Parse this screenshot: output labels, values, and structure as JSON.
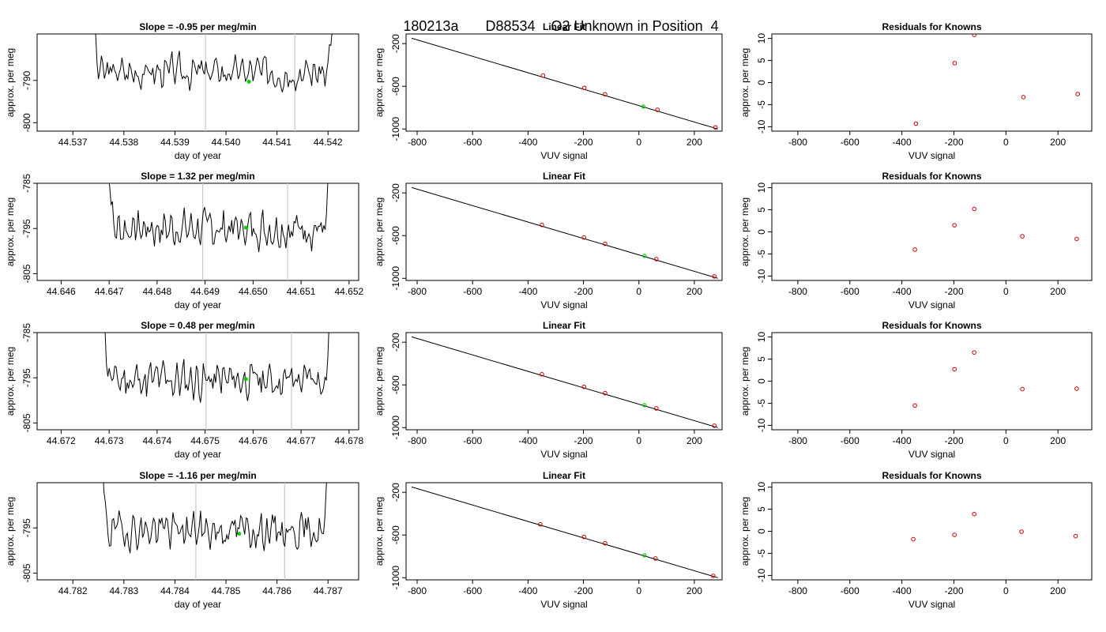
{
  "title": {
    "date": "180213a",
    "tank": "D88534",
    "label": "O2 Unknown in Position  4"
  },
  "chart_data": [
    {
      "type": "line",
      "row": 1,
      "panel": "timeseries",
      "title": "Slope =  -0.95  per meg/min",
      "xlabel": "day of year",
      "ylabel": "approx. per meg",
      "xlim": [
        44.5363,
        44.5426
      ],
      "ylim": [
        -802,
        -779
      ],
      "xticks": [
        "44.537",
        "44.538",
        "44.539",
        "44.540",
        "44.541",
        "44.542"
      ],
      "xtick_values": [
        44.537,
        44.538,
        44.539,
        44.54,
        44.541,
        44.542
      ],
      "yticks": [
        "-800",
        "-790"
      ],
      "ytick_values": [
        -800,
        -790
      ],
      "vlines": [
        44.5396,
        44.54135
      ],
      "green_point": [
        44.54045,
        -790.3
      ],
      "x_start": 44.5373,
      "x_end": 44.5422,
      "baseline": -788,
      "amplitude": 2.6,
      "seed": 3
    },
    {
      "type": "line",
      "row": 2,
      "panel": "timeseries",
      "title": "Slope =  1.32  per meg/min",
      "xlabel": "day of year",
      "ylabel": "approx. per meg",
      "xlim": [
        44.6455,
        44.6522
      ],
      "ylim": [
        -806.5,
        -785
      ],
      "xticks": [
        "44.646",
        "44.647",
        "44.648",
        "44.649",
        "44.650",
        "44.651",
        "44.652"
      ],
      "xtick_values": [
        44.646,
        44.647,
        44.648,
        44.649,
        44.65,
        44.651,
        44.652
      ],
      "yticks": [
        "-785",
        "-795",
        "-805"
      ],
      "ytick_values": [
        -785,
        -795,
        -805
      ],
      "vlines": [
        44.64895,
        44.65072
      ],
      "green_point": [
        44.64985,
        -794.8
      ],
      "x_start": 44.6469,
      "x_end": 44.6517,
      "baseline": -795,
      "amplitude": 2.8,
      "seed": 7
    },
    {
      "type": "line",
      "row": 3,
      "panel": "timeseries",
      "title": "Slope =  0.48  per meg/min",
      "xlabel": "day of year",
      "ylabel": "approx. per meg",
      "xlim": [
        44.6715,
        44.6782
      ],
      "ylim": [
        -806.5,
        -785
      ],
      "xticks": [
        "44.672",
        "44.673",
        "44.674",
        "44.675",
        "44.676",
        "44.677",
        "44.678"
      ],
      "xtick_values": [
        44.672,
        44.673,
        44.674,
        44.675,
        44.676,
        44.677,
        44.678
      ],
      "yticks": [
        "-785",
        "-795",
        "-805"
      ],
      "ytick_values": [
        -785,
        -795,
        -805
      ],
      "vlines": [
        44.67502,
        44.6768
      ],
      "green_point": [
        44.67585,
        -795.3
      ],
      "x_start": 44.6728,
      "x_end": 44.6777,
      "baseline": -795.5,
      "amplitude": 2.9,
      "seed": 11
    },
    {
      "type": "line",
      "row": 4,
      "panel": "timeseries",
      "title": "Slope =  -1.16  per meg/min",
      "xlabel": "day of year",
      "ylabel": "approx. per meg",
      "xlim": [
        44.7813,
        44.7876
      ],
      "ylim": [
        -806.5,
        -785
      ],
      "xticks": [
        "44.782",
        "44.783",
        "44.784",
        "44.785",
        "44.786",
        "44.787"
      ],
      "xtick_values": [
        44.782,
        44.783,
        44.784,
        44.785,
        44.786,
        44.787
      ],
      "yticks": [
        "-795",
        "-805"
      ],
      "ytick_values": [
        -795,
        -805
      ],
      "vlines": [
        44.78441,
        44.78615
      ],
      "green_point": [
        44.78526,
        -796.3
      ],
      "x_start": 44.7825,
      "x_end": 44.7871,
      "baseline": -795.5,
      "amplitude": 2.7,
      "seed": 19
    },
    {
      "type": "scatter",
      "row": 1,
      "panel": "fit",
      "title": "Linear Fit",
      "xlabel": "VUV signal",
      "ylabel": "approx. per meg",
      "xlim": [
        -840,
        300
      ],
      "ylim": [
        -1020,
        -110
      ],
      "xticks": [
        "-800",
        "-600",
        "-400",
        "-200",
        "0",
        "200"
      ],
      "xtick_values": [
        -800,
        -600,
        -400,
        -200,
        0,
        200
      ],
      "yticks": [
        "-200",
        "-600",
        "-1000"
      ],
      "ytick_values": [
        -200,
        -600,
        -1000
      ],
      "line": [
        [
          -820,
          -150
        ],
        [
          285,
          -1000
        ]
      ],
      "points": [
        [
          -346,
          -500
        ],
        [
          -197,
          -615
        ],
        [
          -122,
          -675
        ],
        [
          67,
          -820
        ],
        [
          276,
          -985
        ]
      ],
      "green_point": [
        16,
        -790
      ]
    },
    {
      "type": "scatter",
      "row": 2,
      "panel": "fit",
      "title": "Linear Fit",
      "xlabel": "VUV signal",
      "ylabel": "approx. per meg",
      "xlim": [
        -840,
        300
      ],
      "ylim": [
        -1020,
        -110
      ],
      "xticks": [
        "-800",
        "-600",
        "-400",
        "-200",
        "0",
        "200"
      ],
      "xtick_values": [
        -800,
        -600,
        -400,
        -200,
        0,
        200
      ],
      "yticks": [
        "-200",
        "-600",
        "-1000"
      ],
      "ytick_values": [
        -200,
        -600,
        -1000
      ],
      "line": [
        [
          -820,
          -150
        ],
        [
          285,
          -1000
        ]
      ],
      "points": [
        [
          -350,
          -500
        ],
        [
          -198,
          -618
        ],
        [
          -122,
          -677
        ],
        [
          63,
          -820
        ],
        [
          272,
          -982
        ]
      ],
      "green_point": [
        20,
        -790
      ]
    },
    {
      "type": "scatter",
      "row": 3,
      "panel": "fit",
      "title": "Linear Fit",
      "xlabel": "VUV signal",
      "ylabel": "approx. per meg",
      "xlim": [
        -840,
        300
      ],
      "ylim": [
        -1020,
        -110
      ],
      "xticks": [
        "-800",
        "-600",
        "-400",
        "-200",
        "0",
        "200"
      ],
      "xtick_values": [
        -800,
        -600,
        -400,
        -200,
        0,
        200
      ],
      "yticks": [
        "-200",
        "-600",
        "-1000"
      ],
      "ytick_values": [
        -200,
        -600,
        -1000
      ],
      "line": [
        [
          -820,
          -150
        ],
        [
          285,
          -1000
        ]
      ],
      "points": [
        [
          -350,
          -500
        ],
        [
          -198,
          -618
        ],
        [
          -122,
          -677
        ],
        [
          63,
          -820
        ],
        [
          272,
          -982
        ]
      ],
      "green_point": [
        20,
        -790
      ]
    },
    {
      "type": "scatter",
      "row": 4,
      "panel": "fit",
      "title": "Linear Fit",
      "xlabel": "VUV signal",
      "ylabel": "approx. per meg",
      "xlim": [
        -840,
        300
      ],
      "ylim": [
        -1020,
        -110
      ],
      "xticks": [
        "-800",
        "-600",
        "-400",
        "-200",
        "0",
        "200"
      ],
      "xtick_values": [
        -800,
        -600,
        -400,
        -200,
        0,
        200
      ],
      "yticks": [
        "-200",
        "-600",
        "-1000"
      ],
      "ytick_values": [
        -200,
        -600,
        -1000
      ],
      "line": [
        [
          -820,
          -150
        ],
        [
          285,
          -1000
        ]
      ],
      "points": [
        [
          -356,
          -500
        ],
        [
          -198,
          -618
        ],
        [
          -122,
          -677
        ],
        [
          60,
          -820
        ],
        [
          268,
          -982
        ]
      ],
      "green_point": [
        20,
        -790
      ]
    },
    {
      "type": "scatter",
      "row": 1,
      "panel": "residuals",
      "title": "Residuals for Knowns",
      "xlabel": "VUV signal",
      "ylabel": "approx. per meg",
      "xlim": [
        -900,
        330
      ],
      "ylim": [
        -11,
        11
      ],
      "xticks": [
        "-800",
        "-600",
        "-400",
        "-200",
        "0",
        "200"
      ],
      "xtick_values": [
        -800,
        -600,
        -400,
        -200,
        0,
        200
      ],
      "yticks": [
        "-10",
        "-5",
        "0",
        "5",
        "10"
      ],
      "ytick_values": [
        -10,
        -5,
        0,
        5,
        10
      ],
      "points": [
        [
          -346,
          -9.3
        ],
        [
          -197,
          4.4
        ],
        [
          -122,
          10.8
        ],
        [
          67,
          -3.3
        ],
        [
          276,
          -2.6
        ]
      ]
    },
    {
      "type": "scatter",
      "row": 2,
      "panel": "residuals",
      "title": "Residuals for Knowns",
      "xlabel": "VUV signal",
      "ylabel": "approx. per meg",
      "xlim": [
        -900,
        330
      ],
      "ylim": [
        -11,
        11
      ],
      "xticks": [
        "-800",
        "-600",
        "-400",
        "-200",
        "0",
        "200"
      ],
      "xtick_values": [
        -800,
        -600,
        -400,
        -200,
        0,
        200
      ],
      "yticks": [
        "-10",
        "-5",
        "0",
        "5",
        "10"
      ],
      "ytick_values": [
        -10,
        -5,
        0,
        5,
        10
      ],
      "points": [
        [
          -350,
          -4.0
        ],
        [
          -198,
          1.5
        ],
        [
          -122,
          5.2
        ],
        [
          63,
          -1.0
        ],
        [
          272,
          -1.6
        ]
      ]
    },
    {
      "type": "scatter",
      "row": 3,
      "panel": "residuals",
      "title": "Residuals for Knowns",
      "xlabel": "VUV signal",
      "ylabel": "approx. per meg",
      "xlim": [
        -900,
        330
      ],
      "ylim": [
        -11,
        11
      ],
      "xticks": [
        "-800",
        "-600",
        "-400",
        "-200",
        "0",
        "200"
      ],
      "xtick_values": [
        -800,
        -600,
        -400,
        -200,
        0,
        200
      ],
      "yticks": [
        "-10",
        "-5",
        "0",
        "5",
        "10"
      ],
      "ytick_values": [
        -10,
        -5,
        0,
        5,
        10
      ],
      "points": [
        [
          -350,
          -5.5
        ],
        [
          -198,
          2.7
        ],
        [
          -122,
          6.5
        ],
        [
          63,
          -1.8
        ],
        [
          272,
          -1.7
        ]
      ]
    },
    {
      "type": "scatter",
      "row": 4,
      "panel": "residuals",
      "title": "Residuals for Knowns",
      "xlabel": "VUV signal",
      "ylabel": "approx. per meg",
      "xlim": [
        -900,
        330
      ],
      "ylim": [
        -11,
        11
      ],
      "xticks": [
        "-800",
        "-600",
        "-400",
        "-200",
        "0",
        "200"
      ],
      "xtick_values": [
        -800,
        -600,
        -400,
        -200,
        0,
        200
      ],
      "yticks": [
        "-10",
        "-5",
        "0",
        "5",
        "10"
      ],
      "ytick_values": [
        -10,
        -5,
        0,
        5,
        10
      ],
      "points": [
        [
          -356,
          -1.8
        ],
        [
          -198,
          -0.8
        ],
        [
          -122,
          3.9
        ],
        [
          60,
          -0.1
        ],
        [
          268,
          -1.1
        ]
      ]
    }
  ]
}
